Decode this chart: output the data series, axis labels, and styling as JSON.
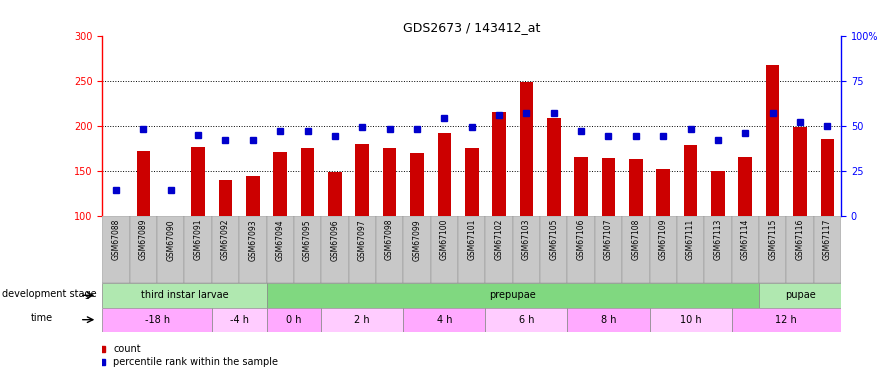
{
  "title": "GDS2673 / 143412_at",
  "samples": [
    "GSM67088",
    "GSM67089",
    "GSM67090",
    "GSM67091",
    "GSM67092",
    "GSM67093",
    "GSM67094",
    "GSM67095",
    "GSM67096",
    "GSM67097",
    "GSM67098",
    "GSM67099",
    "GSM67100",
    "GSM67101",
    "GSM67102",
    "GSM67103",
    "GSM67105",
    "GSM67106",
    "GSM67107",
    "GSM67108",
    "GSM67109",
    "GSM67111",
    "GSM67113",
    "GSM67114",
    "GSM67115",
    "GSM67116",
    "GSM67117"
  ],
  "counts": [
    100,
    172,
    100,
    176,
    140,
    144,
    171,
    175,
    148,
    180,
    175,
    170,
    192,
    175,
    215,
    248,
    208,
    165,
    164,
    163,
    152,
    178,
    150,
    165,
    267,
    198,
    185
  ],
  "percentiles": [
    14,
    48,
    14,
    45,
    42,
    42,
    47,
    47,
    44,
    49,
    48,
    48,
    54,
    49,
    56,
    57,
    57,
    47,
    44,
    44,
    44,
    48,
    42,
    46,
    57,
    52,
    50
  ],
  "ylim_left": [
    100,
    300
  ],
  "ylim_right": [
    0,
    100
  ],
  "yticks_left": [
    100,
    150,
    200,
    250,
    300
  ],
  "yticks_right": [
    0,
    25,
    50,
    75,
    100
  ],
  "bar_color": "#cc0000",
  "dot_color": "#0000cc",
  "tick_bg_color": "#c8c8c8",
  "dev_stages_info": [
    {
      "label": "third instar larvae",
      "start": 0,
      "end": 6,
      "color": "#b0e8b0"
    },
    {
      "label": "prepupae",
      "start": 6,
      "end": 24,
      "color": "#80d880"
    },
    {
      "label": "pupae",
      "start": 24,
      "end": 27,
      "color": "#b0e8b0"
    }
  ],
  "time_stages_info": [
    {
      "label": "-18 h",
      "start": 0,
      "end": 4,
      "color": "#ffaaff"
    },
    {
      "label": "-4 h",
      "start": 4,
      "end": 6,
      "color": "#ffccff"
    },
    {
      "label": "0 h",
      "start": 6,
      "end": 8,
      "color": "#ffaaff"
    },
    {
      "label": "2 h",
      "start": 8,
      "end": 11,
      "color": "#ffccff"
    },
    {
      "label": "4 h",
      "start": 11,
      "end": 14,
      "color": "#ffaaff"
    },
    {
      "label": "6 h",
      "start": 14,
      "end": 17,
      "color": "#ffccff"
    },
    {
      "label": "8 h",
      "start": 17,
      "end": 20,
      "color": "#ffaaff"
    },
    {
      "label": "10 h",
      "start": 20,
      "end": 23,
      "color": "#ffccff"
    },
    {
      "label": "12 h",
      "start": 23,
      "end": 27,
      "color": "#ffaaff"
    }
  ],
  "legend_count_label": "count",
  "legend_pct_label": "percentile rank within the sample",
  "dev_stage_label": "development stage",
  "time_label": "time"
}
